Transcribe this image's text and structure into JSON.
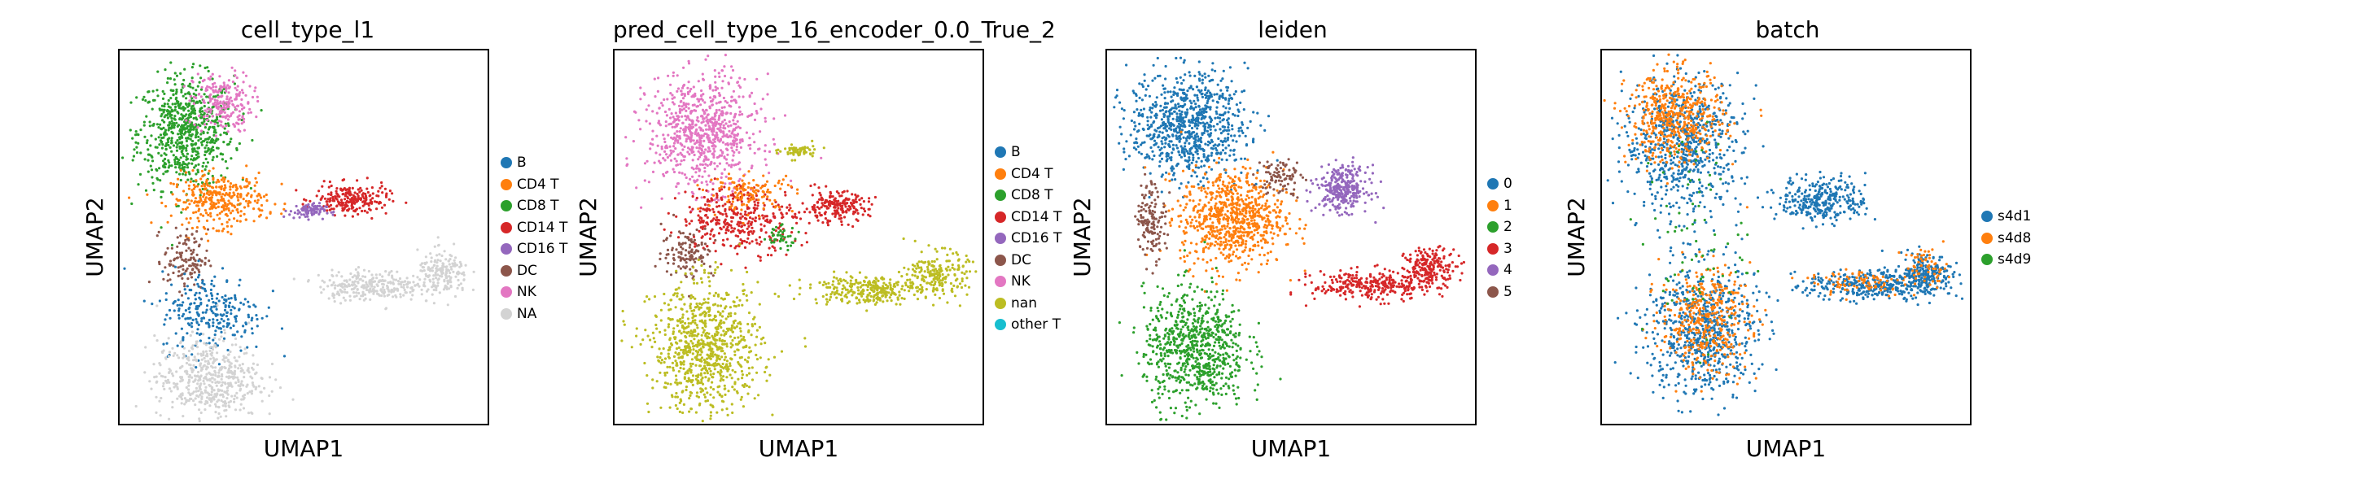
{
  "chart_data": [
    {
      "type": "scatter",
      "title": "cell_type_l1",
      "xlabel": "UMAP1",
      "ylabel": "UMAP2",
      "grid": false,
      "legend_placement": "right",
      "legend": [
        {
          "label": "B",
          "color": "#1f77b4"
        },
        {
          "label": "CD4 T",
          "color": "#ff7f0e"
        },
        {
          "label": "CD8 T",
          "color": "#2ca02c"
        },
        {
          "label": "CD14 T",
          "color": "#d62728"
        },
        {
          "label": "CD16 T",
          "color": "#9467bd"
        },
        {
          "label": "DC",
          "color": "#8c564b"
        },
        {
          "label": "NK",
          "color": "#e377c2"
        },
        {
          "label": "NA",
          "color": "#d3d3d3"
        }
      ],
      "clusters": [
        {
          "label": "CD8 T",
          "cx": 0.18,
          "cy": 0.78,
          "rx": 0.13,
          "ry": 0.15,
          "n": 700
        },
        {
          "label": "NK",
          "cx": 0.28,
          "cy": 0.86,
          "rx": 0.08,
          "ry": 0.08,
          "n": 220
        },
        {
          "label": "CD4 T",
          "cx": 0.27,
          "cy": 0.6,
          "rx": 0.13,
          "ry": 0.07,
          "n": 330
        },
        {
          "label": "CD14 T",
          "cx": 0.63,
          "cy": 0.6,
          "rx": 0.1,
          "ry": 0.04,
          "n": 220
        },
        {
          "label": "CD16 T",
          "cx": 0.51,
          "cy": 0.57,
          "rx": 0.05,
          "ry": 0.02,
          "n": 80
        },
        {
          "label": "DC",
          "cx": 0.18,
          "cy": 0.44,
          "rx": 0.06,
          "ry": 0.08,
          "n": 120
        },
        {
          "label": "B",
          "cx": 0.25,
          "cy": 0.3,
          "rx": 0.14,
          "ry": 0.11,
          "n": 260
        },
        {
          "label": "NA",
          "cx": 0.24,
          "cy": 0.12,
          "rx": 0.14,
          "ry": 0.11,
          "n": 520
        },
        {
          "label": "NA",
          "cx": 0.68,
          "cy": 0.37,
          "rx": 0.14,
          "ry": 0.04,
          "n": 260
        },
        {
          "label": "NA",
          "cx": 0.88,
          "cy": 0.4,
          "rx": 0.07,
          "ry": 0.06,
          "n": 180
        }
      ]
    },
    {
      "type": "scatter",
      "title": "pred_cell_type_16_encoder_0.0_True_2",
      "xlabel": "UMAP1",
      "ylabel": "UMAP2",
      "grid": false,
      "legend_placement": "right",
      "legend": [
        {
          "label": "B",
          "color": "#1f77b4"
        },
        {
          "label": "CD4 T",
          "color": "#ff7f0e"
        },
        {
          "label": "CD8 T",
          "color": "#2ca02c"
        },
        {
          "label": "CD14 T",
          "color": "#d62728"
        },
        {
          "label": "CD16 T",
          "color": "#9467bd"
        },
        {
          "label": "DC",
          "color": "#8c564b"
        },
        {
          "label": "NK",
          "color": "#e377c2"
        },
        {
          "label": "nan",
          "color": "#bcbd22"
        },
        {
          "label": "other T",
          "color": "#17becf"
        }
      ],
      "clusters": [
        {
          "label": "NK",
          "cx": 0.24,
          "cy": 0.78,
          "rx": 0.15,
          "ry": 0.15,
          "n": 760
        },
        {
          "label": "CD14 T",
          "cx": 0.34,
          "cy": 0.55,
          "rx": 0.16,
          "ry": 0.09,
          "n": 360
        },
        {
          "label": "CD14 T",
          "cx": 0.6,
          "cy": 0.58,
          "rx": 0.09,
          "ry": 0.04,
          "n": 200
        },
        {
          "label": "CD4 T",
          "cx": 0.37,
          "cy": 0.62,
          "rx": 0.12,
          "ry": 0.05,
          "n": 120
        },
        {
          "label": "DC",
          "cx": 0.2,
          "cy": 0.46,
          "rx": 0.07,
          "ry": 0.07,
          "n": 120
        },
        {
          "label": "nan",
          "cx": 0.25,
          "cy": 0.2,
          "rx": 0.15,
          "ry": 0.17,
          "n": 820
        },
        {
          "label": "nan",
          "cx": 0.68,
          "cy": 0.36,
          "rx": 0.15,
          "ry": 0.04,
          "n": 280
        },
        {
          "label": "nan",
          "cx": 0.88,
          "cy": 0.4,
          "rx": 0.08,
          "ry": 0.06,
          "n": 200
        },
        {
          "label": "nan",
          "cx": 0.5,
          "cy": 0.73,
          "rx": 0.05,
          "ry": 0.02,
          "n": 60
        },
        {
          "label": "CD8 T",
          "cx": 0.45,
          "cy": 0.5,
          "rx": 0.05,
          "ry": 0.03,
          "n": 40
        }
      ]
    },
    {
      "type": "scatter",
      "title": "leiden",
      "xlabel": "UMAP1",
      "ylabel": "UMAP2",
      "grid": false,
      "legend_placement": "right",
      "legend": [
        {
          "label": "0",
          "color": "#1f77b4"
        },
        {
          "label": "1",
          "color": "#ff7f0e"
        },
        {
          "label": "2",
          "color": "#2ca02c"
        },
        {
          "label": "3",
          "color": "#d62728"
        },
        {
          "label": "4",
          "color": "#9467bd"
        },
        {
          "label": "5",
          "color": "#8c564b"
        }
      ],
      "clusters": [
        {
          "label": "0",
          "cx": 0.22,
          "cy": 0.8,
          "rx": 0.16,
          "ry": 0.14,
          "n": 820
        },
        {
          "label": "1",
          "cx": 0.34,
          "cy": 0.55,
          "rx": 0.14,
          "ry": 0.13,
          "n": 760
        },
        {
          "label": "2",
          "cx": 0.24,
          "cy": 0.2,
          "rx": 0.14,
          "ry": 0.16,
          "n": 760
        },
        {
          "label": "4",
          "cx": 0.64,
          "cy": 0.63,
          "rx": 0.07,
          "ry": 0.06,
          "n": 300
        },
        {
          "label": "3",
          "cx": 0.72,
          "cy": 0.37,
          "rx": 0.16,
          "ry": 0.04,
          "n": 300
        },
        {
          "label": "3",
          "cx": 0.88,
          "cy": 0.42,
          "rx": 0.07,
          "ry": 0.05,
          "n": 200
        },
        {
          "label": "5",
          "cx": 0.12,
          "cy": 0.55,
          "rx": 0.04,
          "ry": 0.1,
          "n": 140
        },
        {
          "label": "5",
          "cx": 0.47,
          "cy": 0.66,
          "rx": 0.06,
          "ry": 0.05,
          "n": 90
        }
      ]
    },
    {
      "type": "scatter",
      "title": "batch",
      "xlabel": "UMAP1",
      "ylabel": "UMAP2",
      "grid": false,
      "legend_placement": "right",
      "legend": [
        {
          "label": "s4d1",
          "color": "#1f77b4"
        },
        {
          "label": "s4d8",
          "color": "#ff7f0e"
        },
        {
          "label": "s4d9",
          "color": "#2ca02c"
        }
      ],
      "clusters": [
        {
          "label": "s4d1",
          "cx": 0.22,
          "cy": 0.75,
          "rx": 0.16,
          "ry": 0.18,
          "n": 700
        },
        {
          "label": "s4d8",
          "cx": 0.2,
          "cy": 0.82,
          "rx": 0.13,
          "ry": 0.12,
          "n": 500
        },
        {
          "label": "s4d1",
          "cx": 0.27,
          "cy": 0.25,
          "rx": 0.15,
          "ry": 0.18,
          "n": 700
        },
        {
          "label": "s4d8",
          "cx": 0.28,
          "cy": 0.28,
          "rx": 0.12,
          "ry": 0.14,
          "n": 380
        },
        {
          "label": "s4d1",
          "cx": 0.6,
          "cy": 0.6,
          "rx": 0.12,
          "ry": 0.06,
          "n": 320
        },
        {
          "label": "s4d1",
          "cx": 0.72,
          "cy": 0.37,
          "rx": 0.16,
          "ry": 0.04,
          "n": 320
        },
        {
          "label": "s4d8",
          "cx": 0.7,
          "cy": 0.38,
          "rx": 0.14,
          "ry": 0.04,
          "n": 80
        },
        {
          "label": "s4d1",
          "cx": 0.88,
          "cy": 0.4,
          "rx": 0.07,
          "ry": 0.06,
          "n": 220
        },
        {
          "label": "s4d8",
          "cx": 0.88,
          "cy": 0.42,
          "rx": 0.06,
          "ry": 0.05,
          "n": 60
        },
        {
          "label": "s4d9",
          "cx": 0.25,
          "cy": 0.5,
          "rx": 0.14,
          "ry": 0.3,
          "n": 80
        }
      ]
    }
  ]
}
